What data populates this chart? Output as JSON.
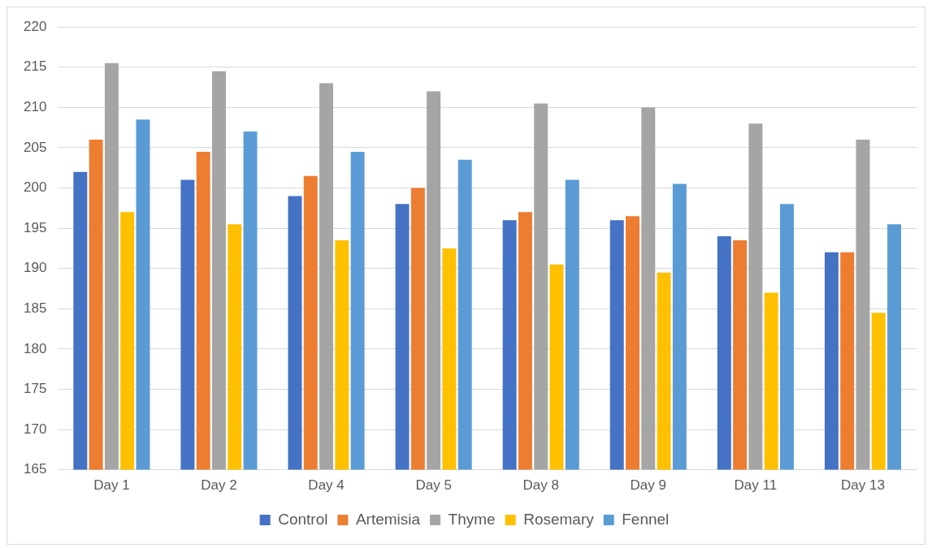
{
  "chart_data": {
    "type": "bar",
    "categories": [
      "Day 1",
      "Day 2",
      "Day 4",
      "Day 5",
      "Day 8",
      "Day 9",
      "Day 11",
      "Day 13"
    ],
    "series": [
      {
        "name": "Control",
        "color": "#4472c4",
        "values": [
          202,
          201,
          199,
          198,
          196,
          196,
          194,
          192
        ]
      },
      {
        "name": "Artemisia",
        "color": "#ed7d31",
        "values": [
          206,
          204.5,
          201.5,
          200,
          197,
          196.5,
          193.5,
          192
        ]
      },
      {
        "name": "Thyme",
        "color": "#a5a5a5",
        "values": [
          215.5,
          214.5,
          213,
          212,
          210.5,
          210,
          208,
          206
        ]
      },
      {
        "name": "Rosemary",
        "color": "#ffc000",
        "values": [
          197,
          195.5,
          193.5,
          192.5,
          190.5,
          189.5,
          187,
          184.5
        ]
      },
      {
        "name": "Fennel",
        "color": "#5b9bd5",
        "values": [
          208.5,
          207,
          204.5,
          203.5,
          201,
          200.5,
          198,
          195.5
        ]
      }
    ],
    "ylim": [
      165,
      220
    ],
    "yticks": [
      165,
      170,
      175,
      180,
      185,
      190,
      195,
      200,
      205,
      210,
      215,
      220
    ],
    "grid": "y",
    "legend": "bottom"
  }
}
